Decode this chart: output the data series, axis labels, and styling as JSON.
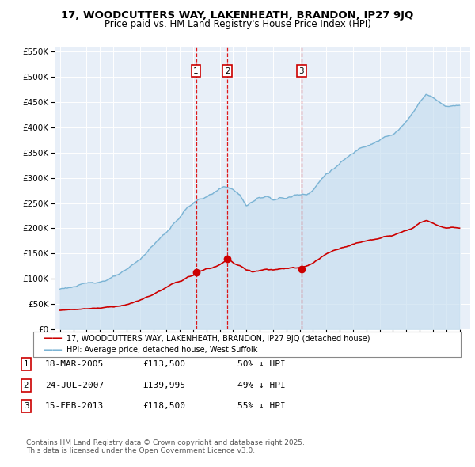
{
  "title": "17, WOODCUTTERS WAY, LAKENHEATH, BRANDON, IP27 9JQ",
  "subtitle": "Price paid vs. HM Land Registry's House Price Index (HPI)",
  "ylim": [
    0,
    560000
  ],
  "yticks": [
    0,
    50000,
    100000,
    150000,
    200000,
    250000,
    300000,
    350000,
    400000,
    450000,
    500000,
    550000
  ],
  "ytick_labels": [
    "£0",
    "£50K",
    "£100K",
    "£150K",
    "£200K",
    "£250K",
    "£300K",
    "£350K",
    "£400K",
    "£450K",
    "£500K",
    "£550K"
  ],
  "hpi_color": "#7ab3d4",
  "hpi_fill_color": "#c8dff0",
  "price_color": "#cc0000",
  "sale_color": "#cc0000",
  "vline_color": "#dd0000",
  "plot_bg": "#e8eff8",
  "grid_color": "#ffffff",
  "sales": [
    {
      "date_num": 2005.21,
      "price": 113500,
      "label": "1"
    },
    {
      "date_num": 2007.56,
      "price": 139995,
      "label": "2"
    },
    {
      "date_num": 2013.12,
      "price": 118500,
      "label": "3"
    }
  ],
  "legend_house_label": "17, WOODCUTTERS WAY, LAKENHEATH, BRANDON, IP27 9JQ (detached house)",
  "legend_hpi_label": "HPI: Average price, detached house, West Suffolk",
  "table_rows": [
    {
      "num": "1",
      "date": "18-MAR-2005",
      "price": "£113,500",
      "hpi": "50% ↓ HPI"
    },
    {
      "num": "2",
      "date": "24-JUL-2007",
      "price": "£139,995",
      "hpi": "49% ↓ HPI"
    },
    {
      "num": "3",
      "date": "15-FEB-2013",
      "price": "£118,500",
      "hpi": "55% ↓ HPI"
    }
  ],
  "footnote": "Contains HM Land Registry data © Crown copyright and database right 2025.\nThis data is licensed under the Open Government Licence v3.0."
}
